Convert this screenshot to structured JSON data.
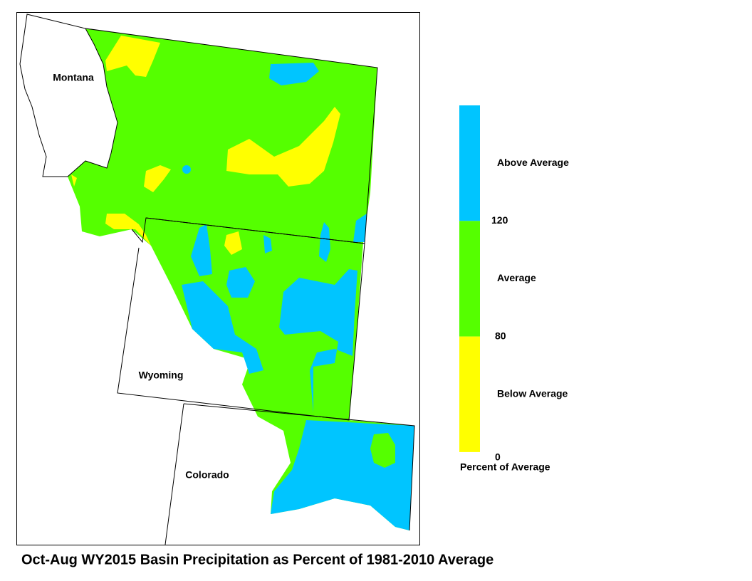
{
  "title": "Oct-Aug WY2015 Basin Precipitation as Percent of 1981-2010 Average",
  "map": {
    "states": [
      "Montana",
      "Wyoming",
      "Colorado"
    ]
  },
  "legend": {
    "title": "Percent of Average",
    "classes": [
      {
        "label": "Above Average",
        "color": "#00c5ff"
      },
      {
        "label": "Average",
        "color": "#55ff00"
      },
      {
        "label": "Below Average",
        "color": "#ffff00"
      }
    ],
    "breaks": [
      "120",
      "80",
      "0"
    ]
  }
}
